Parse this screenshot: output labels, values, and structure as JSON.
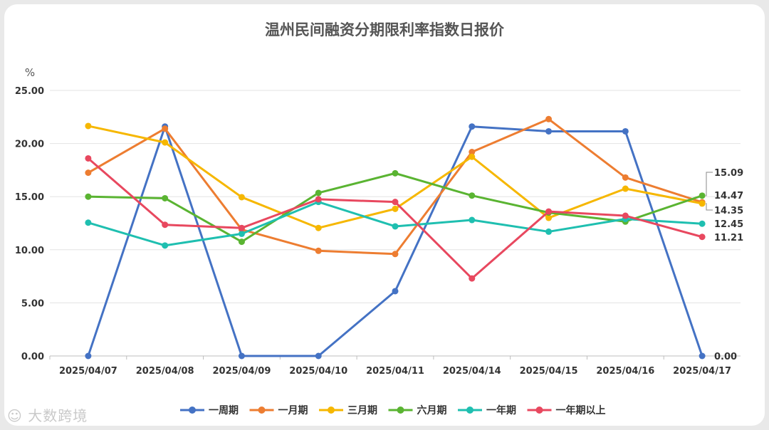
{
  "chart_data": {
    "type": "line",
    "title": "温州民间融资分期限利率指数日报价",
    "ylabel": "%",
    "ylim": [
      0,
      25
    ],
    "yticks": [
      "0.00",
      "5.00",
      "10.00",
      "15.00",
      "20.00",
      "25.00"
    ],
    "grid": true,
    "legend_position": "bottom",
    "categories": [
      "2025/04/07",
      "2025/04/08",
      "2025/04/09",
      "2025/04/10",
      "2025/04/11",
      "2025/04/14",
      "2025/04/15",
      "2025/04/16",
      "2025/04/17"
    ],
    "series": [
      {
        "name": "一周期",
        "color": "#4472c4",
        "values": [
          0.0,
          21.6,
          0.0,
          0.0,
          6.1,
          21.6,
          21.15,
          21.15,
          0.0
        ]
      },
      {
        "name": "一月期",
        "color": "#ed7d31",
        "values": [
          17.25,
          21.4,
          11.9,
          9.9,
          9.6,
          19.2,
          22.3,
          16.8,
          14.47
        ]
      },
      {
        "name": "三月期",
        "color": "#f6b700",
        "values": [
          21.65,
          20.1,
          14.95,
          12.05,
          13.85,
          18.75,
          13.0,
          15.75,
          14.35
        ]
      },
      {
        "name": "六月期",
        "color": "#5ab432",
        "values": [
          15.0,
          14.85,
          10.75,
          15.35,
          17.2,
          15.1,
          13.5,
          12.65,
          15.09
        ]
      },
      {
        "name": "一年期",
        "color": "#1fbfb0",
        "values": [
          12.55,
          10.4,
          11.5,
          14.5,
          12.2,
          12.8,
          11.7,
          12.9,
          12.45
        ]
      },
      {
        "name": "一年期以上",
        "color": "#e8485f",
        "values": [
          18.6,
          12.35,
          12.05,
          14.75,
          14.5,
          7.3,
          13.6,
          13.2,
          11.21
        ]
      }
    ],
    "end_labels": [
      "15.09",
      "14.47",
      "14.35",
      "12.45",
      "11.21",
      "0.00"
    ]
  },
  "watermark": "大数跨境"
}
